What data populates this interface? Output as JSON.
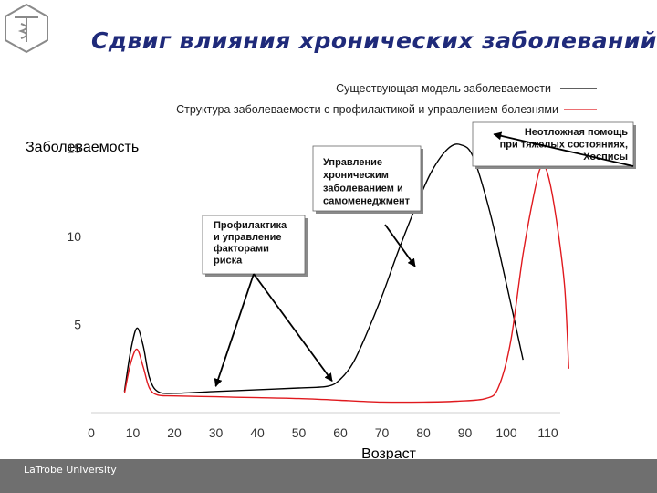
{
  "slide": {
    "title": "Сдвиг влияния хронических заболеваний",
    "footer": "LaTrobe University"
  },
  "colors": {
    "title": "#1f2a7a",
    "footer_band": "#6f6f6f",
    "series_existing": "#000000",
    "series_prevention": "#e0191e"
  },
  "chart_data": {
    "type": "line",
    "title": "",
    "xlabel": "Возраст",
    "ylabel": "Заболеваемость",
    "xlim": [
      0,
      110
    ],
    "ylim": [
      0,
      16
    ],
    "x_ticks": [
      0,
      10,
      20,
      30,
      40,
      50,
      60,
      70,
      80,
      90,
      100,
      110
    ],
    "x_tick_labels": [
      "0",
      "10",
      "20",
      "30",
      "40",
      "50",
      "60",
      "70",
      "80",
      "90",
      "100",
      "110"
    ],
    "y_ticks": [
      5,
      10,
      15
    ],
    "y_tick_labels": [
      "5",
      "10",
      "15"
    ],
    "grid": false,
    "legend_position": "top-right",
    "series": [
      {
        "name": "Существующая модель заболеваемости",
        "color": "#000000",
        "points": [
          [
            8,
            1.2
          ],
          [
            9.5,
            3.5
          ],
          [
            11,
            4.8
          ],
          [
            12.5,
            3.8
          ],
          [
            14,
            2
          ],
          [
            16,
            1.2
          ],
          [
            20,
            1.1
          ],
          [
            30,
            1.2
          ],
          [
            40,
            1.3
          ],
          [
            50,
            1.4
          ],
          [
            57,
            1.5
          ],
          [
            60,
            1.9
          ],
          [
            63,
            2.8
          ],
          [
            66,
            4.3
          ],
          [
            70,
            6.6
          ],
          [
            74,
            9.2
          ],
          [
            78,
            11.6
          ],
          [
            82,
            13.7
          ],
          [
            86,
            15
          ],
          [
            89,
            15.2
          ],
          [
            92,
            14.5
          ],
          [
            96,
            11.4
          ],
          [
            100,
            7.3
          ],
          [
            104,
            3
          ]
        ]
      },
      {
        "name": "Структура заболеваемости с профилактикой и управлением болезнями",
        "color": "#e0191e",
        "points": [
          [
            8,
            1.1
          ],
          [
            9.5,
            2.8
          ],
          [
            11,
            3.6
          ],
          [
            12.5,
            2.6
          ],
          [
            14,
            1.4
          ],
          [
            16,
            1
          ],
          [
            20,
            0.95
          ],
          [
            30,
            0.9
          ],
          [
            40,
            0.85
          ],
          [
            50,
            0.8
          ],
          [
            60,
            0.7
          ],
          [
            70,
            0.6
          ],
          [
            80,
            0.6
          ],
          [
            88,
            0.65
          ],
          [
            95,
            0.8
          ],
          [
            98,
            1.4
          ],
          [
            101,
            4
          ],
          [
            104,
            9
          ],
          [
            107,
            12.8
          ],
          [
            108.5,
            14
          ],
          [
            110,
            13.5
          ],
          [
            112,
            11
          ],
          [
            114,
            7.2
          ],
          [
            115,
            2.5
          ]
        ]
      }
    ],
    "annotations": [
      {
        "lines": [
          "Профилактика",
          "и управление",
          "факторами",
          "риска"
        ],
        "points_to": [
          [
            30,
            1.5
          ],
          [
            58,
            1.8
          ]
        ]
      },
      {
        "lines": [
          "Управление",
          "хроническим",
          "заболеванием и",
          "самоменеджмент"
        ],
        "points_to": [
          [
            78,
            8.3
          ]
        ]
      },
      {
        "lines": [
          "Неотложная помощь",
          "при тяжелых состояниях,",
          "Хосписы"
        ],
        "points_to": [
          [
            97,
            15.8
          ]
        ]
      }
    ]
  }
}
